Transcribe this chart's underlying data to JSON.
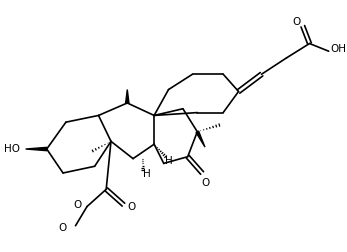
{
  "background": "#ffffff",
  "line_color": "#000000",
  "lw": 1.2,
  "fig_width": 3.47,
  "fig_height": 2.52,
  "dpi": 100,
  "xlim": [
    0,
    347
  ],
  "ylim": [
    0,
    252
  ],
  "label_HO": "HO",
  "label_OH": "OH",
  "label_O1": "O",
  "label_O2": "O",
  "label_O3": "O",
  "label_H1": "H",
  "label_H2": "H",
  "label_Me": "O",
  "fs": 7.5
}
